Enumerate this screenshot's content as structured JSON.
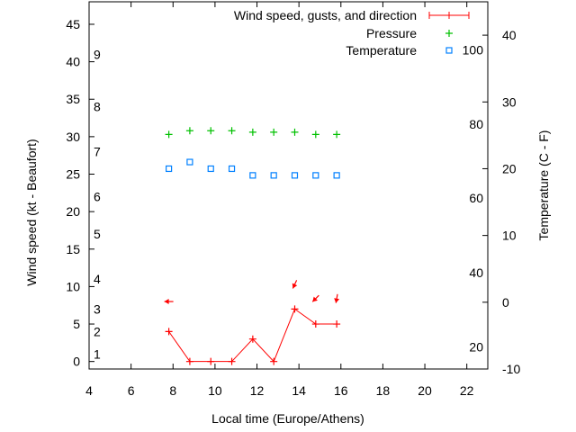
{
  "chart_data": {
    "type": "line",
    "xlabel": "Local time (Europe/Athens)",
    "ylabel": "Wind speed (kt - Beaufort)",
    "y2label": "Temperature (C - F)",
    "xlim": [
      4,
      23
    ],
    "ylim": [
      -1,
      48
    ],
    "y2lim": [
      -10,
      45
    ],
    "xticks": [
      4,
      6,
      8,
      10,
      12,
      14,
      16,
      18,
      20,
      22
    ],
    "yticks": [
      0,
      5,
      10,
      15,
      20,
      25,
      30,
      35,
      40,
      45
    ],
    "y2ticks": [
      -10,
      0,
      10,
      20,
      30,
      40
    ],
    "beaufort_labels": [
      {
        "label": "1",
        "kt": 1
      },
      {
        "label": "2",
        "kt": 4
      },
      {
        "label": "3",
        "kt": 7
      },
      {
        "label": "4",
        "kt": 11
      },
      {
        "label": "5",
        "kt": 17
      },
      {
        "label": "6",
        "kt": 22
      },
      {
        "label": "7",
        "kt": 28
      },
      {
        "label": "8",
        "kt": 34
      },
      {
        "label": "9",
        "kt": 41
      }
    ],
    "fahrenheit_labels": [
      {
        "label": "20",
        "c": -6.7
      },
      {
        "label": "40",
        "c": 4.4
      },
      {
        "label": "60",
        "c": 15.6
      },
      {
        "label": "80",
        "c": 26.7
      },
      {
        "label": "100",
        "c": 37.8
      }
    ],
    "x": [
      7.8,
      8.8,
      9.8,
      10.8,
      11.8,
      12.8,
      13.8,
      14.8,
      15.8
    ],
    "series": [
      {
        "name": "Wind speed, gusts, and direction",
        "axis": "y",
        "color": "#ff0000",
        "values": [
          4,
          0,
          0,
          0,
          3,
          0,
          7,
          5,
          5
        ]
      },
      {
        "name": "Pressure",
        "axis": "y",
        "color": "#00c000",
        "values": [
          30.3,
          30.8,
          30.8,
          30.8,
          30.6,
          30.6,
          30.6,
          30.3,
          30.3
        ]
      },
      {
        "name": "Temperature",
        "axis": "y2",
        "color": "#0080ff",
        "values": [
          20,
          21,
          20,
          20,
          19,
          19,
          19,
          19,
          19
        ]
      }
    ],
    "wind_direction_arrows": [
      {
        "x": 7.8,
        "kt": 8,
        "heading_deg": 270
      },
      {
        "x": 13.8,
        "kt": 10.3,
        "heading_deg": 205
      },
      {
        "x": 14.8,
        "kt": 8.4,
        "heading_deg": 225
      },
      {
        "x": 15.8,
        "kt": 8.4,
        "heading_deg": 190
      }
    ],
    "legend_position": "top-right",
    "grid": false
  }
}
